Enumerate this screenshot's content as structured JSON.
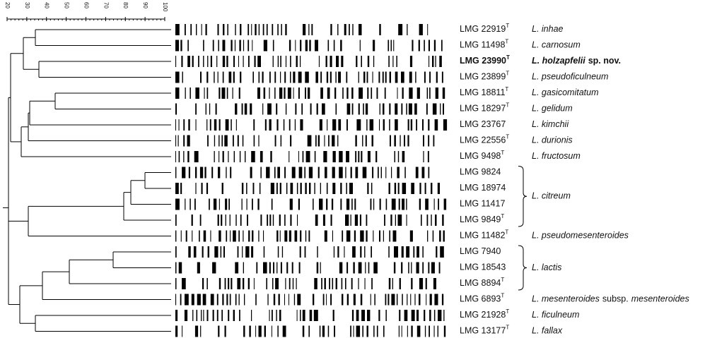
{
  "scale_ticks": [
    20,
    30,
    40,
    50,
    60,
    70,
    80,
    90,
    100
  ],
  "rows": [
    {
      "strain": "LMG 22919",
      "sup": "T",
      "species": [
        {
          "text": "L. inhae",
          "italic": true
        }
      ]
    },
    {
      "strain": "LMG 11498",
      "sup": "T",
      "species": [
        {
          "text": "L. carnosum",
          "italic": true
        }
      ]
    },
    {
      "strain": "LMG 23990",
      "sup": "T",
      "bold": true,
      "species": [
        {
          "text": "L. holzapfelii",
          "italic": true
        },
        {
          "text": "sp. nov.",
          "italic": false
        }
      ]
    },
    {
      "strain": "LMG 23899",
      "sup": "T",
      "species": [
        {
          "text": "L. pseudoficulneum",
          "italic": true
        }
      ]
    },
    {
      "strain": "LMG 18811",
      "sup": "T",
      "species": [
        {
          "text": "L. gasicomitatum",
          "italic": true
        }
      ]
    },
    {
      "strain": "LMG 18297",
      "sup": "T",
      "species": [
        {
          "text": "L. gelidum",
          "italic": true
        }
      ]
    },
    {
      "strain": "LMG 23767",
      "species": [
        {
          "text": "L. kimchii",
          "italic": true
        }
      ]
    },
    {
      "strain": "LMG 22556",
      "sup": "T",
      "species": [
        {
          "text": "L. durionis",
          "italic": true
        }
      ]
    },
    {
      "strain": "LMG 9498",
      "sup": "T",
      "species": [
        {
          "text": "L. fructosum",
          "italic": true
        }
      ]
    },
    {
      "strain": "LMG 9824"
    },
    {
      "strain": "LMG 18974"
    },
    {
      "strain": "LMG 11417"
    },
    {
      "strain": "LMG 9849",
      "sup": "T"
    },
    {
      "strain": "LMG 11482",
      "sup": "T",
      "species": [
        {
          "text": "L. pseudomesenteroides",
          "italic": true
        }
      ]
    },
    {
      "strain": "LMG 7940"
    },
    {
      "strain": "LMG 18543"
    },
    {
      "strain": "LMG 8894",
      "sup": "T"
    },
    {
      "strain": "LMG 6893",
      "sup": "T",
      "species": [
        {
          "text": "L. mesenteroides",
          "italic": true
        },
        {
          "text": "subsp.",
          "italic": false
        },
        {
          "text": "mesenteroides",
          "italic": true
        }
      ]
    },
    {
      "strain": "LMG 21928",
      "sup": "T",
      "species": [
        {
          "text": "L. ficulneum",
          "italic": true
        }
      ]
    },
    {
      "strain": "LMG 13177",
      "sup": "T",
      "species": [
        {
          "text": "L. fallax",
          "italic": true
        }
      ]
    }
  ],
  "groups": [
    {
      "label": "L. citreum",
      "first": 9,
      "last": 12
    },
    {
      "label": "L. lactis",
      "first": 14,
      "last": 16
    }
  ]
}
